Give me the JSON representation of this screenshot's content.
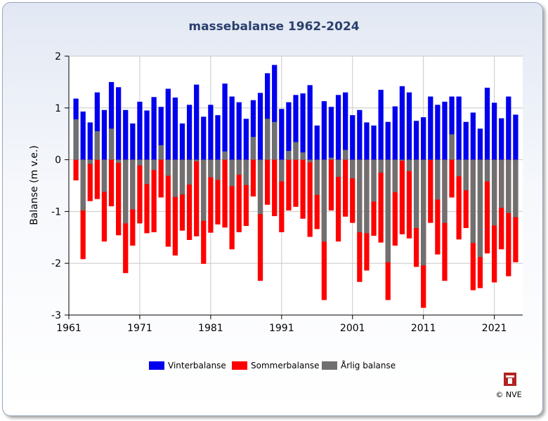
{
  "chart_data": {
    "type": "bar",
    "title": "massebalanse 1962-2024",
    "xlabel": "",
    "ylabel": "Balanse (m v.e.)",
    "ylim": [
      -3,
      2
    ],
    "xlim": [
      1961,
      2025
    ],
    "xticks": [
      1961,
      1971,
      1981,
      1991,
      2001,
      2011,
      2021
    ],
    "yticks": [
      -3,
      -2,
      -1,
      0,
      1,
      2
    ],
    "grid": true,
    "legend_position": "bottom",
    "colors": {
      "Vinterbalanse": "#0000ee",
      "Sommerbalanse": "#ff0000",
      "Årlig balanse": "#707070"
    },
    "x": [
      1962,
      1963,
      1964,
      1965,
      1966,
      1967,
      1968,
      1969,
      1970,
      1971,
      1972,
      1973,
      1974,
      1975,
      1976,
      1977,
      1978,
      1979,
      1980,
      1981,
      1982,
      1983,
      1984,
      1985,
      1986,
      1987,
      1988,
      1989,
      1990,
      1991,
      1992,
      1993,
      1994,
      1995,
      1996,
      1997,
      1998,
      1999,
      2000,
      2001,
      2002,
      2003,
      2004,
      2005,
      2006,
      2007,
      2008,
      2009,
      2010,
      2011,
      2012,
      2013,
      2014,
      2015,
      2016,
      2017,
      2018,
      2019,
      2020,
      2021,
      2022,
      2023,
      2024
    ],
    "series": [
      {
        "name": "Vinterbalanse",
        "values": [
          1.18,
          0.93,
          0.72,
          1.3,
          0.96,
          1.5,
          1.4,
          0.96,
          0.7,
          1.12,
          0.95,
          1.21,
          1.02,
          1.37,
          1.2,
          0.7,
          1.06,
          1.45,
          0.83,
          1.06,
          0.86,
          1.47,
          1.22,
          1.11,
          0.79,
          1.15,
          1.29,
          1.67,
          1.83,
          0.98,
          1.11,
          1.25,
          1.28,
          1.44,
          0.66,
          1.13,
          1.02,
          1.25,
          1.3,
          0.86,
          0.96,
          0.72,
          0.66,
          1.35,
          0.73,
          1.03,
          1.42,
          1.3,
          0.75,
          0.82,
          1.22,
          1.06,
          1.12,
          1.22,
          1.22,
          0.73,
          0.91,
          0.6,
          1.39,
          1.1,
          0.8,
          1.22,
          0.87
        ]
      },
      {
        "name": "Sommerbalanse",
        "values": [
          -0.4,
          -1.92,
          -0.8,
          -0.76,
          -1.58,
          -0.9,
          -1.46,
          -2.19,
          -1.66,
          -1.23,
          -1.42,
          -1.4,
          -0.73,
          -1.68,
          -1.85,
          -1.37,
          -1.55,
          -1.48,
          -2.01,
          -1.41,
          -1.25,
          -1.31,
          -1.73,
          -1.4,
          -1.28,
          -0.71,
          -2.34,
          -0.87,
          -1.09,
          -1.4,
          -0.98,
          -0.91,
          -1.14,
          -1.49,
          -1.34,
          -2.71,
          -0.98,
          -1.58,
          -1.1,
          -1.22,
          -2.36,
          -2.14,
          -1.47,
          -1.6,
          -2.71,
          -1.66,
          -1.44,
          -1.52,
          -2.07,
          -2.86,
          -1.22,
          -1.83,
          -2.34,
          -0.73,
          -1.54,
          -1.32,
          -2.52,
          -2.48,
          -1.81,
          -2.37,
          -1.73,
          -2.25,
          -1.98
        ]
      },
      {
        "name": "Årlig balanse",
        "values": [
          0.78,
          -0.98,
          -0.08,
          0.55,
          -0.62,
          0.6,
          -0.06,
          -1.23,
          -0.96,
          -0.11,
          -0.47,
          -0.2,
          0.28,
          -0.31,
          -0.72,
          -0.67,
          -0.48,
          -0.03,
          -1.18,
          -0.34,
          -0.39,
          0.16,
          -0.51,
          -0.29,
          -0.49,
          0.44,
          -1.05,
          0.79,
          0.73,
          -0.42,
          0.17,
          0.34,
          0.14,
          -0.05,
          -0.68,
          -1.58,
          0.04,
          -0.33,
          0.19,
          -0.36,
          -1.4,
          -1.42,
          -0.81,
          -0.25,
          -1.98,
          -0.63,
          -0.02,
          -0.22,
          -1.32,
          -2.04,
          0.0,
          -0.77,
          -1.22,
          0.49,
          -0.32,
          -0.59,
          -1.61,
          -1.88,
          -0.42,
          -1.27,
          -0.93,
          -1.03,
          -1.11
        ]
      }
    ]
  },
  "credit": {
    "logo": "nve-logo",
    "text": "© NVE"
  }
}
